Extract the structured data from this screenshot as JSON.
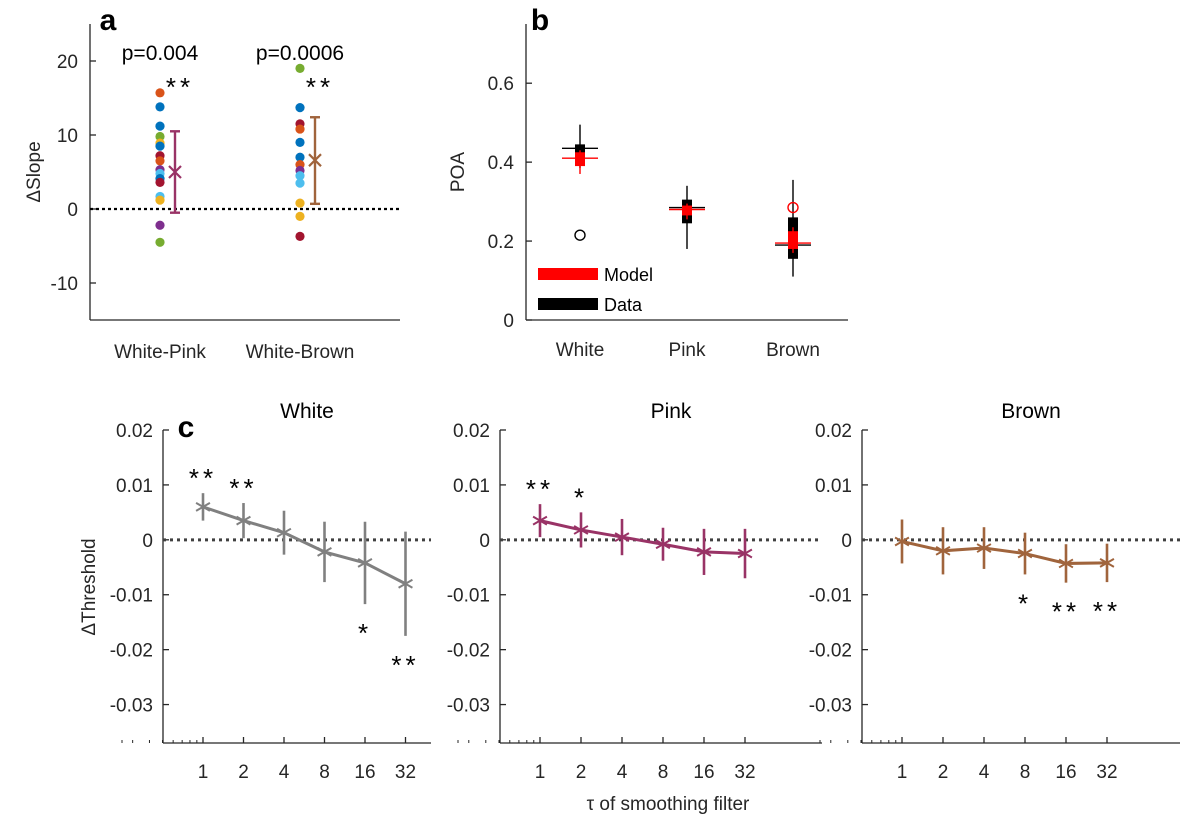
{
  "chart_data": [
    {
      "panel": "a",
      "type": "scatter",
      "ylabel": "ΔSlope",
      "xlabel": "",
      "ylim": [
        -15,
        25
      ],
      "yticks": [
        "-10",
        "0",
        "10",
        "20"
      ],
      "categories": [
        "White-Pink",
        "White-Brown"
      ],
      "groups": [
        {
          "category": "White-Pink",
          "p_label": "p=0.004",
          "stars": "**",
          "points": [
            {
              "y": 15.7,
              "color": "#D95319"
            },
            {
              "y": 13.8,
              "color": "#0072BD"
            },
            {
              "y": 11.2,
              "color": "#0072BD"
            },
            {
              "y": 9.8,
              "color": "#77AC30"
            },
            {
              "y": 8.9,
              "color": "#EDB120"
            },
            {
              "y": 8.5,
              "color": "#0072BD"
            },
            {
              "y": 7.2,
              "color": "#A2142F"
            },
            {
              "y": 6.5,
              "color": "#D95319"
            },
            {
              "y": 5.3,
              "color": "#7E2F8E"
            },
            {
              "y": 4.8,
              "color": "#4DBEEE"
            },
            {
              "y": 4.1,
              "color": "#0072BD"
            },
            {
              "y": 3.6,
              "color": "#A2142F"
            },
            {
              "y": 1.7,
              "color": "#4DBEEE"
            },
            {
              "y": 1.2,
              "color": "#EDB120"
            },
            {
              "y": -2.2,
              "color": "#7E2F8E"
            },
            {
              "y": -4.5,
              "color": "#77AC30"
            }
          ],
          "mean": 5.0,
          "err_low": -0.5,
          "err_high": 10.5,
          "mean_color": "#993366"
        },
        {
          "category": "White-Brown",
          "p_label": "p=0.0006",
          "stars": "**",
          "points": [
            {
              "y": 19.0,
              "color": "#77AC30"
            },
            {
              "y": 13.7,
              "color": "#0072BD"
            },
            {
              "y": 11.5,
              "color": "#A2142F"
            },
            {
              "y": 10.8,
              "color": "#D95319"
            },
            {
              "y": 9.0,
              "color": "#0072BD"
            },
            {
              "y": 7.0,
              "color": "#0072BD"
            },
            {
              "y": 6.0,
              "color": "#D95319"
            },
            {
              "y": 5.2,
              "color": "#7E2F8E"
            },
            {
              "y": 4.5,
              "color": "#4DBEEE"
            },
            {
              "y": 3.5,
              "color": "#4DBEEE"
            },
            {
              "y": 0.8,
              "color": "#EDB120"
            },
            {
              "y": -1.0,
              "color": "#EDB120"
            },
            {
              "y": -3.7,
              "color": "#A2142F"
            }
          ],
          "mean": 6.6,
          "err_low": 0.7,
          "err_high": 12.4,
          "mean_color": "#A0643C"
        }
      ]
    },
    {
      "panel": "b",
      "type": "box",
      "ylabel": "POA",
      "ylim": [
        0,
        0.75
      ],
      "yticks": [
        "0",
        "0.2",
        "0.4",
        "0.6"
      ],
      "categories": [
        "White",
        "Pink",
        "Brown"
      ],
      "legend": [
        {
          "name": "Model",
          "color": "#FF0000"
        },
        {
          "name": "Data",
          "color": "#000000"
        }
      ],
      "legend_position": "bottom-left",
      "boxes": [
        {
          "category": "White",
          "data": {
            "q1": 0.41,
            "median": 0.435,
            "q3": 0.445,
            "wlo": 0.385,
            "whi": 0.495,
            "outliers": [
              0.215
            ]
          },
          "model": {
            "q1": 0.39,
            "median": 0.41,
            "q3": 0.425,
            "wlo": 0.37,
            "whi": 0.43,
            "outliers": []
          }
        },
        {
          "category": "Pink",
          "data": {
            "q1": 0.245,
            "median": 0.285,
            "q3": 0.305,
            "wlo": 0.18,
            "whi": 0.34,
            "outliers": []
          },
          "model": {
            "q1": 0.265,
            "median": 0.28,
            "q3": 0.29,
            "wlo": 0.255,
            "whi": 0.295,
            "outliers": []
          }
        },
        {
          "category": "Brown",
          "data": {
            "q1": 0.155,
            "median": 0.19,
            "q3": 0.26,
            "wlo": 0.11,
            "whi": 0.355,
            "outliers": []
          },
          "model": {
            "q1": 0.18,
            "median": 0.195,
            "q3": 0.225,
            "wlo": 0.17,
            "whi": 0.235,
            "outliers": [
              0.285
            ]
          }
        }
      ]
    },
    {
      "panel": "c",
      "type": "line",
      "ylabel": "ΔThreshold",
      "xlabel": "τ of smoothing filter",
      "xscale": "log2",
      "ylim": [
        -0.037,
        0.02
      ],
      "yticks": [
        "0.02",
        "0.01",
        "0",
        "-0.01",
        "-0.02",
        "-0.03"
      ],
      "x": [
        1,
        2,
        4,
        8,
        16,
        32
      ],
      "xticklabels": [
        "1",
        "2",
        "4",
        "8",
        "16",
        "32"
      ],
      "series": [
        {
          "name": "White",
          "color": "#808080",
          "values": [
            0.006,
            0.0035,
            0.0013,
            -0.0022,
            -0.0042,
            -0.008
          ],
          "err": [
            0.0025,
            0.0032,
            0.004,
            0.0055,
            0.0075,
            0.0095
          ],
          "stars": [
            {
              "x": 1,
              "text": "**",
              "pos": "above"
            },
            {
              "x": 2,
              "text": "**",
              "pos": "above"
            },
            {
              "x": 16,
              "text": "*",
              "pos": "below"
            },
            {
              "x": 32,
              "text": "**",
              "pos": "below"
            }
          ]
        },
        {
          "name": "Pink",
          "color": "#993366",
          "values": [
            0.0035,
            0.0018,
            0.0005,
            -0.0008,
            -0.0022,
            -0.0025
          ],
          "err": [
            0.003,
            0.0032,
            0.0033,
            0.003,
            0.0042,
            0.0045
          ],
          "stars": [
            {
              "x": 1,
              "text": "**",
              "pos": "above"
            },
            {
              "x": 2,
              "text": "*",
              "pos": "above"
            }
          ]
        },
        {
          "name": "Brown",
          "color": "#A0643C",
          "values": [
            -0.0003,
            -0.002,
            -0.0015,
            -0.0025,
            -0.0043,
            -0.0042
          ],
          "err": [
            0.004,
            0.0043,
            0.0038,
            0.0038,
            0.0035,
            0.0035
          ],
          "stars": [
            {
              "x": 8,
              "text": "*",
              "pos": "below"
            },
            {
              "x": 16,
              "text": "**",
              "pos": "below"
            },
            {
              "x": 32,
              "text": "**",
              "pos": "below"
            }
          ]
        }
      ]
    }
  ],
  "panel_letters": {
    "a": "a",
    "b": "b",
    "c": "c"
  }
}
